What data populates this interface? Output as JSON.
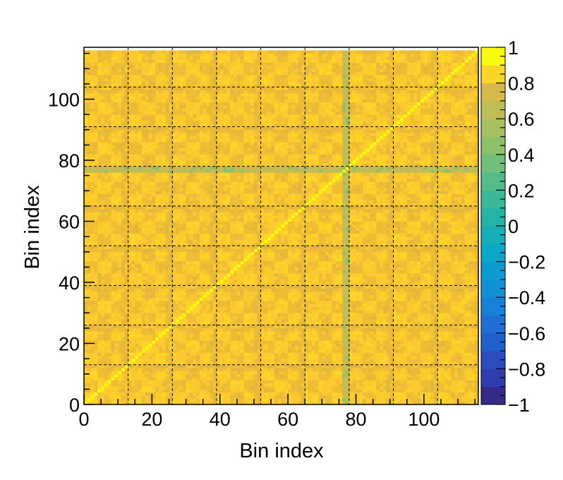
{
  "chart_data": {
    "type": "heatmap",
    "title": "",
    "xlabel": "Bin index",
    "ylabel": "Bin index",
    "n_bins": 116,
    "xlim": [
      0,
      116
    ],
    "ylim": [
      0,
      117
    ],
    "x_ticks": [
      0,
      20,
      40,
      60,
      80,
      100
    ],
    "y_ticks": [
      0,
      20,
      40,
      60,
      80,
      100
    ],
    "zlim": [
      -1,
      1
    ],
    "z_ticks": [
      "1",
      "0.8",
      "0.6",
      "0.4",
      "0.2",
      "0",
      "−0.2",
      "−0.4",
      "−0.6",
      "−0.8",
      "−1"
    ],
    "z_tick_values": [
      1,
      0.8,
      0.6,
      0.4,
      0.2,
      0,
      -0.2,
      -0.4,
      -0.6,
      -0.8,
      -1
    ],
    "grid": "dashed",
    "block_boundaries": [
      13,
      26,
      39,
      52,
      65,
      78,
      91,
      104
    ],
    "low_correlation_bins": [
      76,
      77
    ],
    "diagonal_value": 1.0,
    "typical_off_diagonal_range": [
      0.55,
      0.85
    ],
    "low_correlation_range": [
      0.3,
      0.45
    ],
    "palette": [
      "#352a87",
      "#2a4ec0",
      "#1f6fd6",
      "#1191d4",
      "#0ba7c6",
      "#24b4a7",
      "#52bd8a",
      "#8cc06b",
      "#c1bd56",
      "#e4b73c",
      "#fcc92f",
      "#f9fb0e"
    ]
  },
  "colors": {
    "frame": "#000000",
    "background": "#ffffff"
  }
}
